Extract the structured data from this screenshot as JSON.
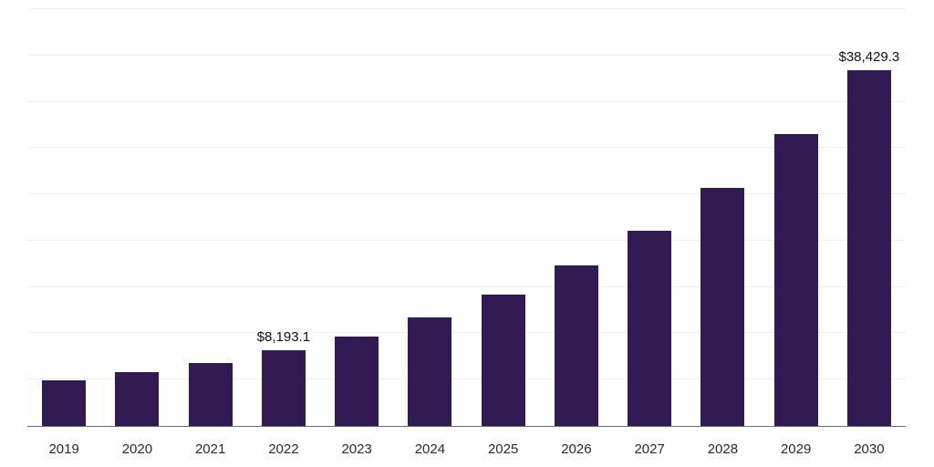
{
  "chart": {
    "bar_color": "#311B52",
    "grid_color": "#F2F2F2",
    "axis_line_color": "#6B6B6B",
    "tick_label_color": "#2B2B2B",
    "data_label_color": "#111111"
  },
  "chart_data": {
    "type": "bar",
    "title": "",
    "xlabel": "",
    "ylabel": "",
    "categories": [
      "2019",
      "2020",
      "2021",
      "2022",
      "2023",
      "2024",
      "2025",
      "2026",
      "2027",
      "2028",
      "2029",
      "2030"
    ],
    "values": [
      4900,
      5800,
      6800,
      8193.1,
      9700,
      11700,
      14200,
      17300,
      21100,
      25700,
      31500,
      38429.3
    ],
    "data_labels": [
      {
        "category": "2022",
        "text": "$8,193.1"
      },
      {
        "category": "2030",
        "text": "$38,429.3"
      }
    ],
    "ylim": [
      0,
      45000
    ],
    "gridline_interval": 5000,
    "grid": "horizontal",
    "legend": "none",
    "y_axis_labels_visible": false
  }
}
